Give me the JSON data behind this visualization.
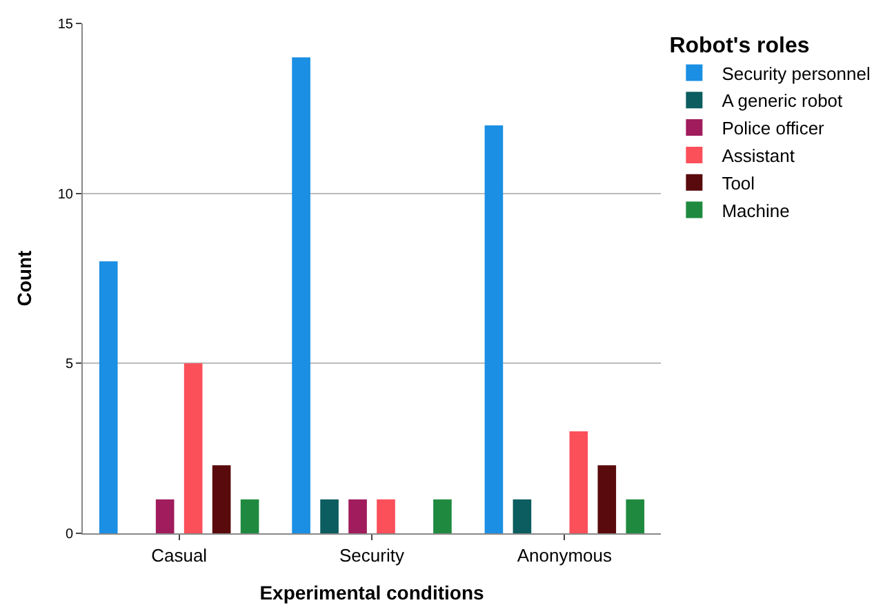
{
  "chart_data": {
    "type": "bar",
    "xlabel": "Experimental conditions",
    "ylabel": "Count",
    "legend_title": "Robot's roles",
    "categories": [
      "Casual",
      "Security",
      "Anonymous"
    ],
    "series": [
      {
        "name": "Security personnel",
        "color": "#1a8fe3",
        "values": [
          8,
          14,
          12
        ]
      },
      {
        "name": "A generic robot",
        "color": "#0b5d5f",
        "values": [
          null,
          1,
          1
        ]
      },
      {
        "name": "Police officer",
        "color": "#a01c5c",
        "values": [
          1,
          1,
          null
        ]
      },
      {
        "name": "Assistant",
        "color": "#fb4f5a",
        "values": [
          5,
          1,
          3
        ]
      },
      {
        "name": "Tool",
        "color": "#590a0c",
        "values": [
          2,
          null,
          2
        ]
      },
      {
        "name": "Machine",
        "color": "#1f8a3f",
        "values": [
          1,
          1,
          1
        ]
      }
    ],
    "ylim": [
      0,
      15
    ],
    "yticks": [
      0,
      5,
      10,
      15
    ],
    "grid": "y",
    "legend": "top right"
  }
}
